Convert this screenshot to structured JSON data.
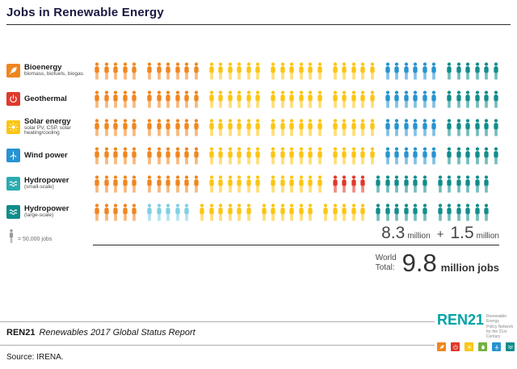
{
  "title": "Jobs in Renewable Energy",
  "colors": {
    "orange": "#F0861F",
    "yellow": "#FCC513",
    "red": "#E0392B",
    "blue": "#2793D1",
    "cyan": "#7FCFE4",
    "teal": "#128D8B",
    "gray": "#9B9B9B"
  },
  "legend": {
    "categories": [
      {
        "name": "Bioenergy",
        "sub": "biomass, biofuels, biogas",
        "color": "#F0861F"
      },
      {
        "name": "Geothermal",
        "sub": "",
        "color": "#E0392B"
      },
      {
        "name": "Solar energy",
        "sub": "solar PV, CSP, solar heating/cooling",
        "color": "#FCC513"
      },
      {
        "name": "Wind power",
        "sub": "",
        "color": "#2793D1"
      },
      {
        "name": "Hydropower",
        "sub": "(small-scale)",
        "color": "#2AACB0"
      },
      {
        "name": "Hydropower",
        "sub": "(large-scale)",
        "color": "#0F8D8B"
      }
    ]
  },
  "chart_data": {
    "type": "pictogram",
    "title": "Jobs in Renewable Energy",
    "unit_person_jobs": 50000,
    "unit_label": "= 50,000 jobs",
    "categories": [
      "Bioenergy (biomass, biofuels, biogas)",
      "Geothermal",
      "Solar energy (solar PV, CSP, solar heating/cooling)",
      "Wind power",
      "Hydropower (small-scale)",
      "Hydropower (large-scale)"
    ],
    "rows": [
      {
        "category": "Bioenergy",
        "cells": [
          {
            "color": "orange",
            "count": 5
          },
          {
            "color": "orange",
            "count": 6
          },
          {
            "color": "yellow",
            "count": 6
          },
          {
            "color": "yellow",
            "count": 6
          },
          {
            "color": "yellow",
            "count": 5
          },
          {
            "color": "blue",
            "count": 6
          },
          {
            "color": "teal",
            "count": 6
          }
        ]
      },
      {
        "category": "Geothermal",
        "cells": [
          {
            "color": "orange",
            "count": 5
          },
          {
            "color": "orange",
            "count": 6
          },
          {
            "color": "yellow",
            "count": 6
          },
          {
            "color": "yellow",
            "count": 6
          },
          {
            "color": "yellow",
            "count": 5
          },
          {
            "color": "blue",
            "count": 6
          },
          {
            "color": "teal",
            "count": 6
          }
        ]
      },
      {
        "category": "Solar energy",
        "cells": [
          {
            "color": "orange",
            "count": 5
          },
          {
            "color": "orange",
            "count": 6
          },
          {
            "color": "yellow",
            "count": 6
          },
          {
            "color": "yellow",
            "count": 6
          },
          {
            "color": "yellow",
            "count": 5
          },
          {
            "color": "blue",
            "count": 6
          },
          {
            "color": "teal",
            "count": 6
          }
        ]
      },
      {
        "category": "Wind power",
        "cells": [
          {
            "color": "orange",
            "count": 5
          },
          {
            "color": "orange",
            "count": 6
          },
          {
            "color": "yellow",
            "count": 6
          },
          {
            "color": "yellow",
            "count": 6
          },
          {
            "color": "yellow",
            "count": 5
          },
          {
            "color": "blue",
            "count": 6
          },
          {
            "color": "teal",
            "count": 6
          }
        ]
      },
      {
        "category": "Hydropower (small-scale)",
        "cells": [
          {
            "color": "orange",
            "count": 5
          },
          {
            "color": "orange",
            "count": 6
          },
          {
            "color": "yellow",
            "count": 6
          },
          {
            "color": "yellow",
            "count": 6
          },
          {
            "color": "red",
            "count": 4
          },
          {
            "color": "teal",
            "count": 6
          },
          {
            "color": "teal",
            "count": 6
          }
        ]
      },
      {
        "category": "Hydropower (large-scale)",
        "cells": [
          {
            "color": "orange",
            "count": 5
          },
          {
            "color": "cyan",
            "count": 5
          },
          {
            "color": "yellow",
            "count": 6
          },
          {
            "color": "yellow",
            "count": 6
          },
          {
            "color": "yellow",
            "count": 5
          },
          {
            "color": "teal",
            "count": 6
          },
          {
            "color": "teal",
            "count": 6
          }
        ]
      }
    ],
    "totals": {
      "subtotal_millions": 8.3,
      "large_hydro_millions": 1.5,
      "world_total_millions": 9.8
    }
  },
  "summary": {
    "value1": "8.3",
    "unit1": "million",
    "operator": "+",
    "value2": "1.5",
    "unit2": "million",
    "world_line1": "World",
    "world_line2": "Total:",
    "total_value": "9.8",
    "total_unit": "million jobs"
  },
  "footer": {
    "brand": "REN21",
    "report": "Renewables 2017 Global Status Report",
    "source": "Source: IRENA."
  },
  "logo": {
    "name": "REN21",
    "tagline_lines": [
      "Renewable Energy",
      "Policy Network",
      "for the 21st Century"
    ],
    "squares": [
      "#F0861F",
      "#E0392B",
      "#FCC513",
      "#76B043",
      "#2793D1",
      "#128D8B"
    ]
  }
}
